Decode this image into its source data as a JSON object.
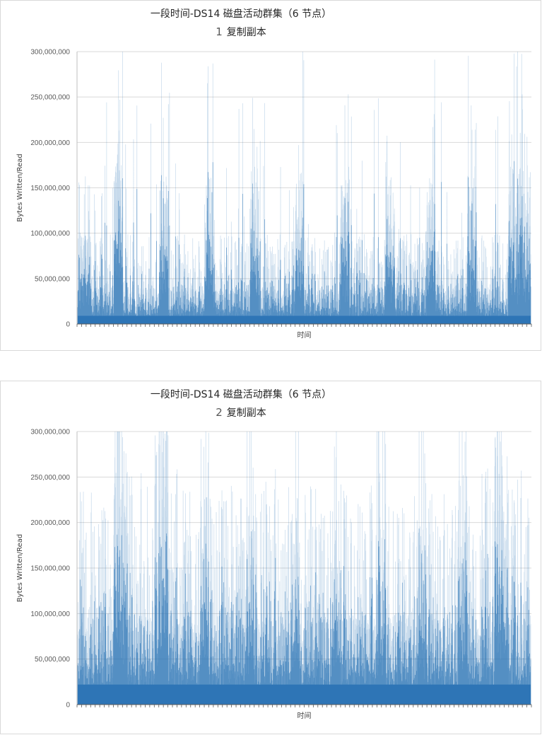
{
  "chart_data": [
    {
      "type": "area",
      "title": "一段时间-DS14 磁盘活动群集（6 节点）",
      "subtitle_number": "1",
      "subtitle_text": "复制副本",
      "xlabel": "时间",
      "ylabel": "Bytes Written/Read",
      "ylim": [
        0,
        300000000
      ],
      "yticks": [
        "0",
        "50,000,000",
        "100,000,000",
        "150,000,000",
        "200,000,000",
        "250,000,000",
        "300,000,000"
      ],
      "grid": true,
      "legend": "none",
      "color": "#2e75b6",
      "baseline": 9000000,
      "bursts": [
        {
          "start": 0.0,
          "end": 0.03,
          "level": 100000000
        },
        {
          "start": 0.08,
          "end": 0.1,
          "level": 185000000
        },
        {
          "start": 0.18,
          "end": 0.2,
          "level": 175000000
        },
        {
          "start": 0.28,
          "end": 0.3,
          "level": 165000000
        },
        {
          "start": 0.38,
          "end": 0.4,
          "level": 175000000
        },
        {
          "start": 0.48,
          "end": 0.5,
          "level": 175000000
        },
        {
          "start": 0.58,
          "end": 0.6,
          "level": 165000000
        },
        {
          "start": 0.68,
          "end": 0.7,
          "level": 165000000
        },
        {
          "start": 0.77,
          "end": 0.79,
          "level": 165000000
        },
        {
          "start": 0.86,
          "end": 0.88,
          "level": 165000000
        },
        {
          "start": 0.95,
          "end": 1.0,
          "level": 175000000
        }
      ]
    },
    {
      "type": "area",
      "title": "一段时间-DS14 磁盘活动群集（6 节点）",
      "subtitle_number": "2",
      "subtitle_text": "复制副本",
      "xlabel": "时间",
      "ylabel": "Bytes Written/Read",
      "ylim": [
        0,
        300000000
      ],
      "yticks": [
        "0",
        "50,000,000",
        "100,000,000",
        "150,000,000",
        "200,000,000",
        "250,000,000",
        "300,000,000"
      ],
      "grid": true,
      "legend": "none",
      "color": "#2e75b6",
      "baseline": 22000000,
      "bursts": [
        {
          "start": 0.08,
          "end": 0.11,
          "level": 300000000
        },
        {
          "start": 0.17,
          "end": 0.2,
          "level": 300000000
        },
        {
          "start": 0.27,
          "end": 0.29,
          "level": 230000000
        },
        {
          "start": 0.37,
          "end": 0.39,
          "level": 210000000
        },
        {
          "start": 0.47,
          "end": 0.49,
          "level": 220000000
        },
        {
          "start": 0.56,
          "end": 0.58,
          "level": 230000000
        },
        {
          "start": 0.66,
          "end": 0.68,
          "level": 210000000
        },
        {
          "start": 0.75,
          "end": 0.77,
          "level": 200000000
        },
        {
          "start": 0.84,
          "end": 0.86,
          "level": 260000000
        },
        {
          "start": 0.92,
          "end": 0.95,
          "level": 300000000
        }
      ]
    }
  ]
}
